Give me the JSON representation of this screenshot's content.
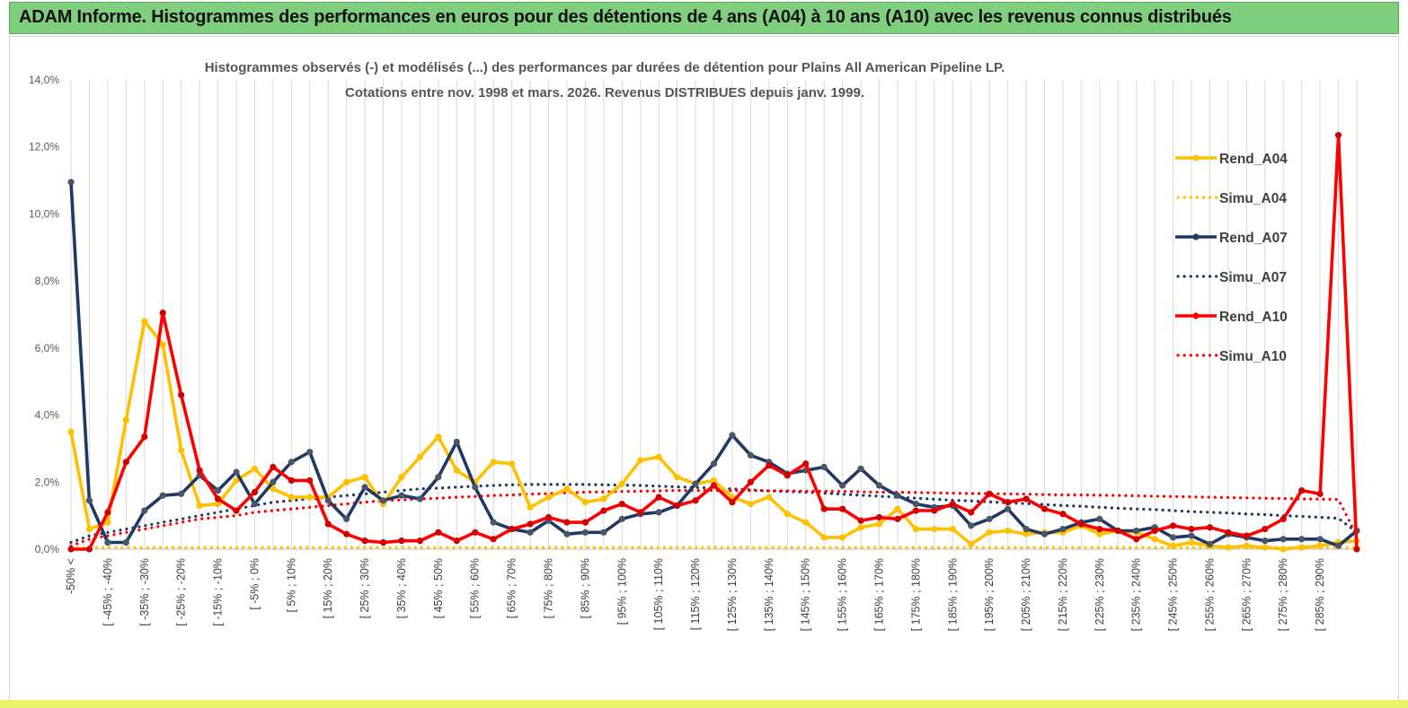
{
  "header": {
    "title": "ADAM Informe. Histogrammes des performances en euros pour des détentions de 4 ans (A04) à 10 ans (A10) avec les revenus connus distribués"
  },
  "chart_data": {
    "type": "line",
    "title": "Histogrammes observés (-) et modélisés (...) des performances par durées de détention pour Plains All American Pipeline LP.",
    "subtitle": "Cotations entre nov. 1998 et mars. 2026. Revenus DISTRIBUES depuis janv. 1999.",
    "xlabel": "",
    "ylabel": "",
    "ylim": [
      0,
      14
    ],
    "yticks": [
      "0,0%",
      "2,0%",
      "4,0%",
      "6,0%",
      "8,0%",
      "10,0%",
      "12,0%",
      "14,0%"
    ],
    "legend_position": "right",
    "x_tick_labels": [
      "-50% <",
      "[ -45% ; -40%",
      "[ -35% ; -30%",
      "[ -25% ; -20%",
      "[ -15% ; -10%",
      "[ -5% ; 0%",
      "[ 5% ; 10%",
      "[ 15% ; 20%",
      "[ 25% ; 30%",
      "[ 35% ; 40%",
      "[ 45% ; 50%",
      "[ 55% ; 60%",
      "[ 65% ; 70%",
      "[ 75% ; 80%",
      "[ 85% ; 90%",
      "[ 95% ; 100%",
      "[ 105% ; 110%",
      "[ 115% ; 120%",
      "[ 125% ; 130%",
      "[ 135% ; 140%",
      "[ 145% ; 150%",
      "[ 155% ; 160%",
      "[ 165% ; 170%",
      "[ 175% ; 180%",
      "[ 185% ; 190%",
      "[ 195% ; 200%",
      "[ 205% ; 210%",
      "[ 215% ; 220%",
      "[ 225% ; 230%",
      "[ 235% ; 240%",
      "[ 245% ; 250%",
      "[ 255% ; 260%",
      "[ 265% ; 270%",
      "[ 275% ; 280%",
      "[ 285% ; 290%"
    ],
    "series": [
      {
        "name": "Rend_A04",
        "style": "solid",
        "color": "#FFC000",
        "values": [
          3.5,
          0.6,
          0.8,
          3.85,
          6.8,
          6.1,
          2.95,
          1.3,
          1.35,
          2.05,
          2.4,
          1.8,
          1.55,
          1.55,
          1.55,
          2.0,
          2.15,
          1.35,
          2.15,
          2.75,
          3.35,
          2.35,
          2.0,
          2.6,
          2.55,
          1.25,
          1.55,
          1.8,
          1.4,
          1.5,
          1.95,
          2.65,
          2.75,
          2.15,
          1.95,
          2.05,
          1.55,
          1.35,
          1.55,
          1.05,
          0.8,
          0.35,
          0.35,
          0.65,
          0.75,
          1.2,
          0.6,
          0.6,
          0.6,
          0.15,
          0.5,
          0.55,
          0.45,
          0.5,
          0.5,
          0.7,
          0.45,
          0.55,
          0.5,
          0.3,
          0.1,
          0.2,
          0.1,
          0.05,
          0.1,
          0.05,
          0.0,
          0.05,
          0.1,
          0.2,
          0.25
        ]
      },
      {
        "name": "Simu_A04",
        "style": "dotted",
        "color": "#FFC000",
        "values": [
          0.05,
          0.05,
          0.05,
          0.05,
          0.05,
          0.05,
          0.05,
          0.05,
          0.05,
          0.05,
          0.05,
          0.05,
          0.05,
          0.05,
          0.05,
          0.05,
          0.05,
          0.05,
          0.05,
          0.05,
          0.05,
          0.05,
          0.05,
          0.05,
          0.05,
          0.05,
          0.05,
          0.05,
          0.05,
          0.05,
          0.05,
          0.05,
          0.05,
          0.05,
          0.05,
          0.05,
          0.05,
          0.05,
          0.05,
          0.05,
          0.05,
          0.05,
          0.05,
          0.05,
          0.05,
          0.05,
          0.05,
          0.05,
          0.05,
          0.05,
          0.05,
          0.05,
          0.05,
          0.05,
          0.05,
          0.05,
          0.05,
          0.05,
          0.05,
          0.05,
          0.05,
          0.05,
          0.05,
          0.05,
          0.05,
          0.05,
          0.05,
          0.05,
          0.05,
          0.05,
          0.05
        ]
      },
      {
        "name": "Rend_A07",
        "style": "solid",
        "color": "#1F3864",
        "values": [
          10.95,
          1.45,
          0.2,
          0.2,
          1.15,
          1.6,
          1.65,
          2.2,
          1.75,
          2.3,
          1.35,
          2.0,
          2.6,
          2.9,
          1.45,
          0.9,
          1.85,
          1.45,
          1.6,
          1.5,
          2.15,
          3.2,
          1.85,
          0.8,
          0.6,
          0.5,
          0.85,
          0.45,
          0.5,
          0.5,
          0.9,
          1.05,
          1.1,
          1.3,
          1.95,
          2.55,
          3.4,
          2.8,
          2.6,
          2.25,
          2.35,
          2.45,
          1.9,
          2.4,
          1.9,
          1.6,
          1.35,
          1.25,
          1.3,
          0.7,
          0.9,
          1.2,
          0.6,
          0.45,
          0.6,
          0.8,
          0.9,
          0.55,
          0.55,
          0.65,
          0.35,
          0.4,
          0.15,
          0.45,
          0.35,
          0.25,
          0.3,
          0.3,
          0.3,
          0.1,
          0.55
        ]
      },
      {
        "name": "Simu_A07",
        "style": "dotted",
        "color": "#1F3864",
        "values": [
          0.2,
          0.4,
          0.5,
          0.6,
          0.7,
          0.8,
          0.9,
          1.0,
          1.1,
          1.2,
          1.3,
          1.4,
          1.45,
          1.5,
          1.55,
          1.6,
          1.65,
          1.7,
          1.75,
          1.8,
          1.82,
          1.85,
          1.88,
          1.9,
          1.92,
          1.93,
          1.93,
          1.93,
          1.93,
          1.92,
          1.91,
          1.9,
          1.88,
          1.86,
          1.84,
          1.82,
          1.8,
          1.77,
          1.74,
          1.72,
          1.7,
          1.67,
          1.64,
          1.61,
          1.58,
          1.55,
          1.52,
          1.49,
          1.46,
          1.44,
          1.41,
          1.38,
          1.36,
          1.33,
          1.3,
          1.28,
          1.25,
          1.22,
          1.2,
          1.18,
          1.15,
          1.12,
          1.1,
          1.08,
          1.05,
          1.03,
          1.0,
          0.98,
          0.95,
          0.92,
          0.5
        ]
      },
      {
        "name": "Rend_A10",
        "style": "solid",
        "color": "#FF0000",
        "values": [
          0.0,
          0.0,
          1.1,
          2.6,
          3.35,
          7.05,
          4.6,
          2.35,
          1.5,
          1.15,
          1.7,
          2.45,
          2.05,
          2.05,
          0.75,
          0.45,
          0.25,
          0.2,
          0.25,
          0.25,
          0.5,
          0.25,
          0.5,
          0.3,
          0.6,
          0.75,
          0.95,
          0.8,
          0.8,
          1.15,
          1.35,
          1.1,
          1.55,
          1.3,
          1.45,
          1.9,
          1.4,
          2.0,
          2.5,
          2.2,
          2.55,
          1.2,
          1.2,
          0.85,
          0.95,
          0.9,
          1.15,
          1.15,
          1.35,
          1.1,
          1.65,
          1.4,
          1.5,
          1.2,
          1.05,
          0.75,
          0.6,
          0.55,
          0.3,
          0.55,
          0.7,
          0.6,
          0.65,
          0.5,
          0.4,
          0.6,
          0.9,
          1.75,
          1.65,
          12.35,
          0.0
        ]
      },
      {
        "name": "Simu_A10",
        "style": "dotted",
        "color": "#FF0000",
        "values": [
          0.1,
          0.3,
          0.4,
          0.5,
          0.6,
          0.7,
          0.8,
          0.9,
          0.95,
          1.0,
          1.1,
          1.15,
          1.2,
          1.25,
          1.3,
          1.35,
          1.4,
          1.45,
          1.47,
          1.5,
          1.52,
          1.55,
          1.57,
          1.6,
          1.62,
          1.64,
          1.66,
          1.68,
          1.7,
          1.71,
          1.72,
          1.73,
          1.74,
          1.75,
          1.75,
          1.75,
          1.75,
          1.75,
          1.74,
          1.74,
          1.73,
          1.73,
          1.72,
          1.71,
          1.7,
          1.7,
          1.69,
          1.68,
          1.67,
          1.66,
          1.66,
          1.65,
          1.64,
          1.63,
          1.62,
          1.62,
          1.61,
          1.6,
          1.59,
          1.58,
          1.57,
          1.56,
          1.55,
          1.54,
          1.53,
          1.52,
          1.51,
          1.5,
          1.49,
          1.48,
          0.4
        ]
      }
    ]
  }
}
